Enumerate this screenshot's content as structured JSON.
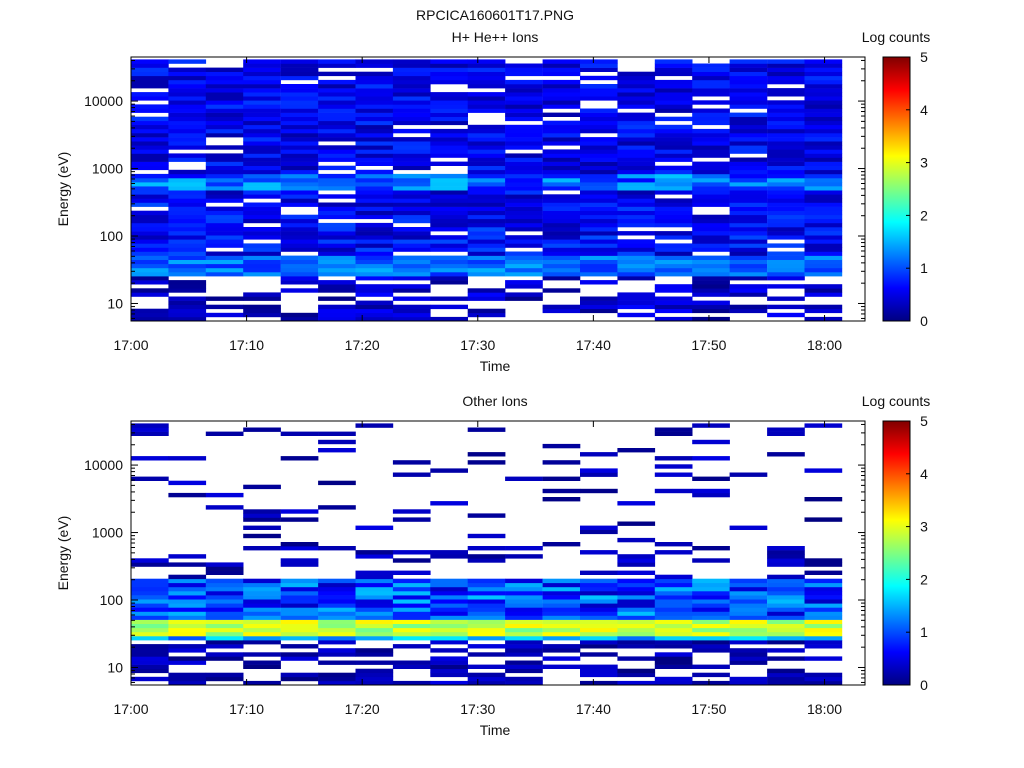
{
  "figure_title": "RPCICA160601T17.PNG",
  "colors": {
    "background": "#ffffff",
    "colormap": [
      "#000080",
      "#0000ff",
      "#00ffff",
      "#ffff00",
      "#ff0000",
      "#800000"
    ]
  },
  "chart_data": [
    {
      "type": "heatmap",
      "title": "H+ He++ Ions",
      "xlabel": "Time",
      "ylabel": "Energy (eV)",
      "x_ticks": [
        "17:00",
        "17:10",
        "17:20",
        "17:30",
        "17:40",
        "17:50",
        "18:00"
      ],
      "y_scale": "log",
      "y_ticks": [
        10,
        100,
        1000,
        10000
      ],
      "y_tick_labels": [
        "10",
        "100",
        "1000",
        "10000"
      ],
      "ylim": [
        5.5,
        45000
      ],
      "xlim": [
        "17:00",
        "18:03"
      ],
      "colorbar": {
        "label": "Log counts",
        "range": [
          0,
          5
        ],
        "ticks": [
          "0",
          "1",
          "2",
          "3",
          "4",
          "5"
        ]
      },
      "time_columns": 19,
      "energy_bins": 64,
      "values_description_level": {
        "above_500eV": 0.5,
        "band_500_700eV": 1.4,
        "band_30_50eV": 1.2,
        "below_30eV": 0.3
      }
    },
    {
      "type": "heatmap",
      "title": "Other Ions",
      "xlabel": "Time",
      "ylabel": "Energy (eV)",
      "x_ticks": [
        "17:00",
        "17:10",
        "17:20",
        "17:30",
        "17:40",
        "17:50",
        "18:00"
      ],
      "y_scale": "log",
      "y_ticks": [
        10,
        100,
        1000,
        10000
      ],
      "y_tick_labels": [
        "10",
        "100",
        "1000",
        "10000"
      ],
      "ylim": [
        5.5,
        45000
      ],
      "xlim": [
        "17:00",
        "18:03"
      ],
      "colorbar": {
        "label": "Log counts",
        "range": [
          0,
          5
        ],
        "ticks": [
          "0",
          "1",
          "2",
          "3",
          "4",
          "5"
        ]
      },
      "time_columns": 19,
      "energy_bins": 64,
      "values_description_level": {
        "band_30_45eV": 2.8,
        "band_25_30eV": 1.4,
        "band_60_200eV": 0.8,
        "above_200eV": 0.3,
        "below_25eV": 0.3
      }
    }
  ]
}
